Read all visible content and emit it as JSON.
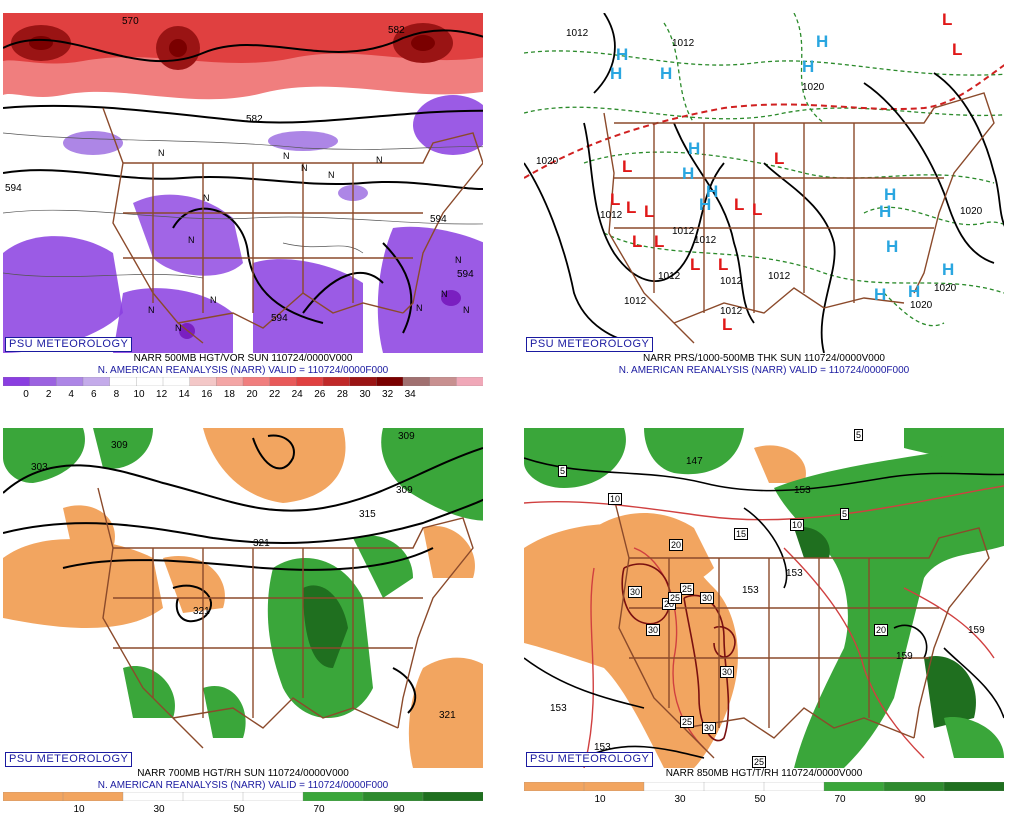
{
  "brand": "PSU METEOROLOGY",
  "panels": [
    {
      "caption1": "NARR 500MB HGT/VOR SUN 110724/0000V000",
      "caption2": "N. AMERICAN REANALYSIS (NARR) VALID = 110724/0000F000",
      "colorbar": {
        "colors": [
          "#8a3ee0",
          "#9b62e0",
          "#ad86e6",
          "#c4abea",
          "#ffffff",
          "#ffffff",
          "#ffffff",
          "#f3c7c7",
          "#f3a5a5",
          "#f07e7e",
          "#e85a5a",
          "#e04040",
          "#c02828",
          "#9a1414",
          "#7a0000",
          "#a07070",
          "#c89090",
          "#f0a8b8"
        ],
        "ticks": [
          "0",
          "2",
          "4",
          "6",
          "8",
          "10",
          "12",
          "14",
          "16",
          "18",
          "20",
          "22",
          "24",
          "26",
          "28",
          "30",
          "32",
          "34"
        ]
      },
      "labels": [
        "570",
        "582",
        "582",
        "594",
        "594",
        "594",
        "594"
      ]
    },
    {
      "caption1": "NARR PRS/1000-500MB THK SUN 110724/0000V000",
      "caption2": "N. AMERICAN REANALYSIS (NARR) VALID = 110724/0000F000",
      "labels": [
        "1012",
        "1012",
        "1020",
        "1020",
        "1012",
        "1020",
        "1012",
        "1012",
        "1012",
        "1012",
        "1012",
        "1012",
        "1020",
        "1012",
        "1020"
      ],
      "highs": [
        "H",
        "H",
        "H",
        "H",
        "H",
        "H",
        "H",
        "H",
        "H",
        "H",
        "H",
        "H",
        "H",
        "H",
        "H"
      ],
      "lows": [
        "L",
        "L",
        "L",
        "L",
        "L",
        "L",
        "L",
        "L",
        "L",
        "L",
        "L",
        "L",
        "L",
        "L"
      ]
    },
    {
      "caption1": "NARR 700MB HGT/RH SUN 110724/0000V000",
      "caption2": "N. AMERICAN REANALYSIS (NARR) VALID = 110724/0000F000",
      "colorbar": {
        "colors": [
          "#f2a560",
          "#f2a560",
          "#ffffff",
          "#ffffff",
          "#ffffff",
          "#3aa63a",
          "#2e8b2e",
          "#1f6f1f"
        ],
        "ticks": [
          "10",
          "30",
          "50",
          "70",
          "90"
        ]
      },
      "labels": [
        "309",
        "309",
        "303",
        "309",
        "315",
        "321",
        "321",
        "321"
      ]
    },
    {
      "caption1": "NARR 850MB HGT/T/RH 110724/0000V000",
      "caption2": "",
      "colorbar": {
        "colors": [
          "#f2a560",
          "#f2a560",
          "#ffffff",
          "#ffffff",
          "#ffffff",
          "#3aa63a",
          "#2e8b2e",
          "#1f6f1f"
        ],
        "ticks": [
          "10",
          "30",
          "50",
          "70",
          "90"
        ]
      },
      "boxed": [
        "5",
        "5",
        "10",
        "10",
        "15",
        "20",
        "20",
        "25",
        "25",
        "25",
        "30",
        "30",
        "30",
        "30",
        "30",
        "5",
        "20",
        "25"
      ],
      "labels": [
        "147",
        "153",
        "153",
        "153",
        "153",
        "159",
        "159",
        "153"
      ]
    }
  ]
}
